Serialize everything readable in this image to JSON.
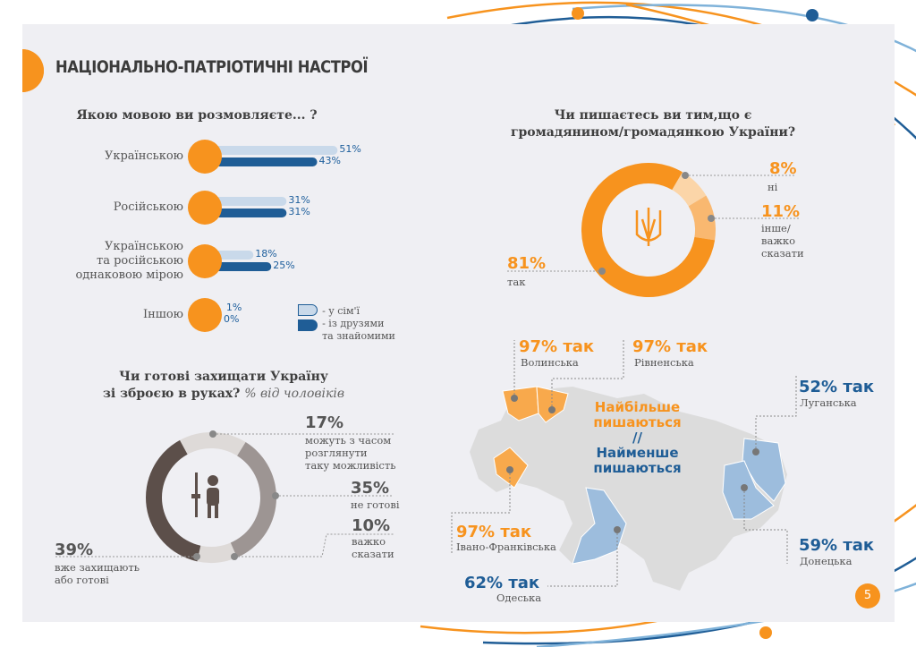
{
  "header": {
    "title": "НАЦІОНАЛЬНО-ПАТРІОТИЧНІ НАСТРОЇ"
  },
  "page_number": "5",
  "colors": {
    "orange": "#f7931e",
    "blue": "#1f5d96",
    "light_blue": "#c9d9ea",
    "map_gray": "#dcdcdc",
    "map_blue": "#9dbddd",
    "map_orange": "#f8a94c"
  },
  "chart_data": [
    {
      "type": "bar",
      "title": "Якою мовою ви розмовляєте... ?",
      "categories": [
        "Українською",
        "Російською",
        "Українською\nта російською\nоднаковою мірою",
        "Іншою"
      ],
      "category_lines": [
        [
          "Українською"
        ],
        [
          "Російською"
        ],
        [
          "Українською",
          "та російською",
          "однаковою мірою"
        ],
        [
          "Іншою"
        ]
      ],
      "series": [
        {
          "name": "- у сім'ї",
          "values": [
            51,
            31,
            18,
            1
          ],
          "labels": [
            "51%",
            "31%",
            "18%",
            "1%"
          ]
        },
        {
          "name": "- із друзями та знайомими",
          "name_lines": [
            "- із друзями",
            "та знайомими"
          ],
          "values": [
            43,
            31,
            25,
            0
          ],
          "labels": [
            "43%",
            "31%",
            "25%",
            "0%"
          ]
        }
      ],
      "ylim": [
        0,
        100
      ]
    },
    {
      "type": "pie",
      "title_lines": [
        "Чи пишаєтесь ви тим,що є",
        "громадянином/громадянкою України?"
      ],
      "slices": [
        {
          "label": "так",
          "value": 81,
          "text": "81%"
        },
        {
          "label": "ні",
          "value": 8,
          "text": "8%"
        },
        {
          "label": "інше/ важко сказати",
          "value": 11,
          "text": "11%",
          "label_lines": [
            "інше/",
            "важко",
            "сказати"
          ]
        }
      ]
    },
    {
      "type": "pie",
      "title_lines": [
        "Чи готові захищати Україну",
        "зі зброєю в руках?"
      ],
      "subtitle": "% від чоловіків",
      "slices": [
        {
          "label": "можуть з часом розглянути таку можливість",
          "value": 17,
          "text": "17%",
          "label_lines": [
            "можуть з часом",
            "розглянути",
            "таку можливість"
          ]
        },
        {
          "label": "не готові",
          "value": 35,
          "text": "35%",
          "label_lines": [
            "не готові"
          ]
        },
        {
          "label": "важко сказати",
          "value": 10,
          "text": "10%",
          "label_lines": [
            "важко",
            "сказати"
          ]
        },
        {
          "label": "вже захищають або готові",
          "value": 39,
          "text": "39%",
          "label_lines": [
            "вже захищають",
            "або готові"
          ]
        }
      ]
    }
  ],
  "map": {
    "legend_most": [
      "Найбільше",
      "пишаються"
    ],
    "separator": "//",
    "legend_least": [
      "Найменше",
      "пишаються"
    ],
    "regions": [
      {
        "value": "97% так",
        "name": "Волинська"
      },
      {
        "value": "97% так",
        "name": "Рівненська"
      },
      {
        "value": "97% так",
        "name": "Івано-Франківська"
      },
      {
        "value": "62% так",
        "name": "Одеська"
      },
      {
        "value": "52% так",
        "name": "Луганська"
      },
      {
        "value": "59% так",
        "name": "Донецька"
      }
    ]
  }
}
